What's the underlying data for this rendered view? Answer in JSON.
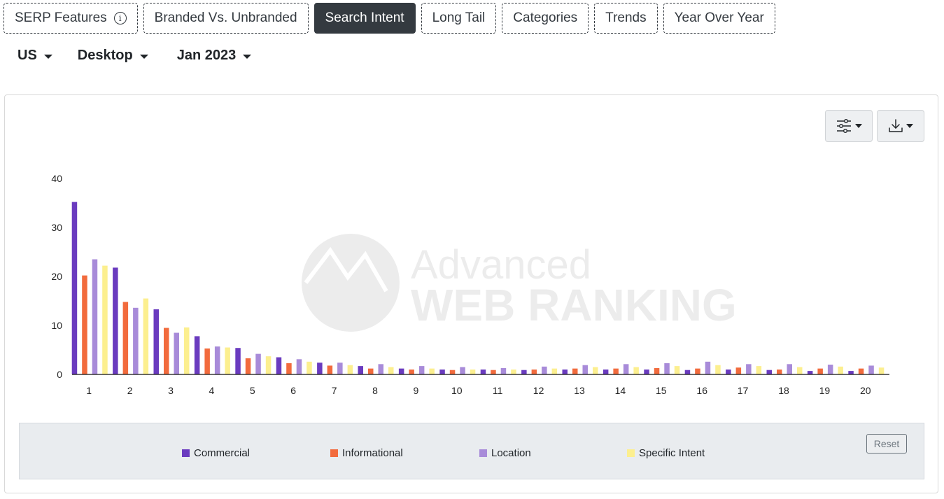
{
  "tabs": [
    {
      "label": "SERP Features",
      "active": false,
      "info": true
    },
    {
      "label": "Branded Vs. Unbranded",
      "active": false
    },
    {
      "label": "Search Intent",
      "active": true
    },
    {
      "label": "Long Tail",
      "active": false
    },
    {
      "label": "Categories",
      "active": false
    },
    {
      "label": "Trends",
      "active": false
    },
    {
      "label": "Year Over Year",
      "active": false
    }
  ],
  "filters": {
    "country": "US",
    "device": "Desktop",
    "month": "Jan 2023"
  },
  "toolbar": {
    "settings_icon": "sliders-icon",
    "download_icon": "download-icon"
  },
  "watermark": {
    "line1": "Advanced",
    "line2": "WEB RANKING"
  },
  "legend": {
    "reset_label": "Reset"
  },
  "chart_data": {
    "type": "bar",
    "categories": [
      "1",
      "2",
      "3",
      "4",
      "5",
      "6",
      "7",
      "8",
      "9",
      "10",
      "11",
      "12",
      "13",
      "14",
      "15",
      "16",
      "17",
      "18",
      "19",
      "20"
    ],
    "y_ticks": [
      "0",
      "10",
      "20",
      "30",
      "40"
    ],
    "ylim": [
      0,
      40
    ],
    "grid": false,
    "legend_position": "bottom",
    "series": [
      {
        "name": "Commercial",
        "color": "#6a3bbf",
        "values": [
          35.2,
          21.8,
          13.3,
          7.8,
          5.4,
          3.5,
          2.4,
          1.7,
          1.2,
          1.0,
          1.0,
          0.9,
          1.0,
          1.0,
          1.0,
          0.9,
          1.0,
          0.9,
          0.7,
          0.7
        ]
      },
      {
        "name": "Informational",
        "color": "#f26b3d",
        "values": [
          20.2,
          14.8,
          9.5,
          5.3,
          3.3,
          2.3,
          1.8,
          1.2,
          1.0,
          0.9,
          0.9,
          1.0,
          1.2,
          1.2,
          1.3,
          1.2,
          1.4,
          1.0,
          1.2,
          1.2
        ]
      },
      {
        "name": "Location",
        "color": "#a88bd9",
        "values": [
          23.5,
          13.6,
          8.5,
          5.7,
          4.2,
          3.1,
          2.4,
          2.1,
          1.7,
          1.5,
          1.3,
          1.6,
          1.9,
          2.1,
          2.3,
          2.6,
          2.1,
          2.1,
          2.0,
          1.8
        ]
      },
      {
        "name": "Specific Intent",
        "color": "#fcef8f",
        "values": [
          22.2,
          15.5,
          9.6,
          5.5,
          3.7,
          2.6,
          1.9,
          1.5,
          1.2,
          1.0,
          1.0,
          1.2,
          1.5,
          1.5,
          1.7,
          1.9,
          1.7,
          1.5,
          1.6,
          1.4
        ]
      }
    ]
  }
}
